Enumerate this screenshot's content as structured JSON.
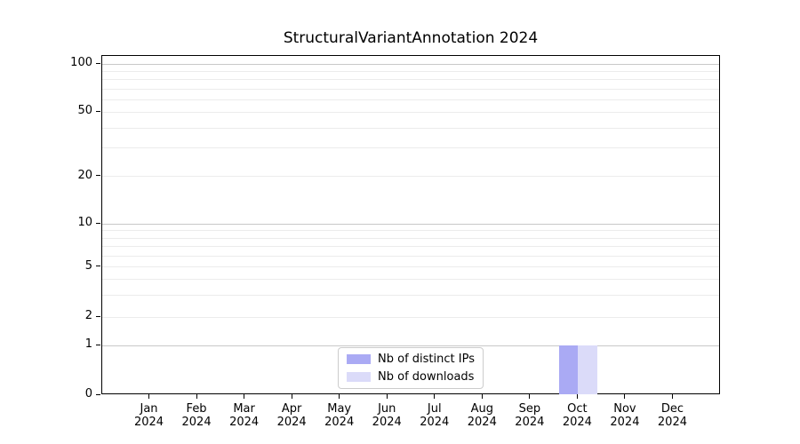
{
  "chart_data": {
    "type": "bar",
    "title": "StructuralVariantAnnotation 2024",
    "x": {
      "months": [
        "Jan",
        "Feb",
        "Mar",
        "Apr",
        "May",
        "Jun",
        "Jul",
        "Aug",
        "Sep",
        "Oct",
        "Nov",
        "Dec"
      ],
      "year": "2024"
    },
    "series": [
      {
        "name": "Nb of distinct IPs",
        "color": "#aaaaf4",
        "values": [
          0,
          0,
          0,
          0,
          0,
          0,
          0,
          0,
          0,
          1,
          0,
          0
        ]
      },
      {
        "name": "Nb of downloads",
        "color": "#dbdbf9",
        "values": [
          0,
          0,
          0,
          0,
          0,
          0,
          0,
          0,
          0,
          1,
          0,
          0
        ]
      }
    ],
    "y_axis": {
      "scale": "symlog",
      "ticks": [
        0,
        1,
        2,
        5,
        10,
        20,
        50,
        100
      ],
      "major_grid_ticks": [
        1,
        10,
        100
      ],
      "minor_ticks": [
        3,
        4,
        6,
        7,
        8,
        9,
        30,
        40,
        60,
        70,
        80,
        90
      ],
      "ylim": [
        0,
        110
      ]
    },
    "legend": {
      "position": "lower center",
      "entries": [
        "Nb of distinct IPs",
        "Nb of downloads"
      ]
    },
    "grid": true,
    "colors": {
      "major_grid": "#c8c8c8",
      "minor_grid": "#ececec",
      "axis": "#000000",
      "background": "#ffffff"
    }
  }
}
